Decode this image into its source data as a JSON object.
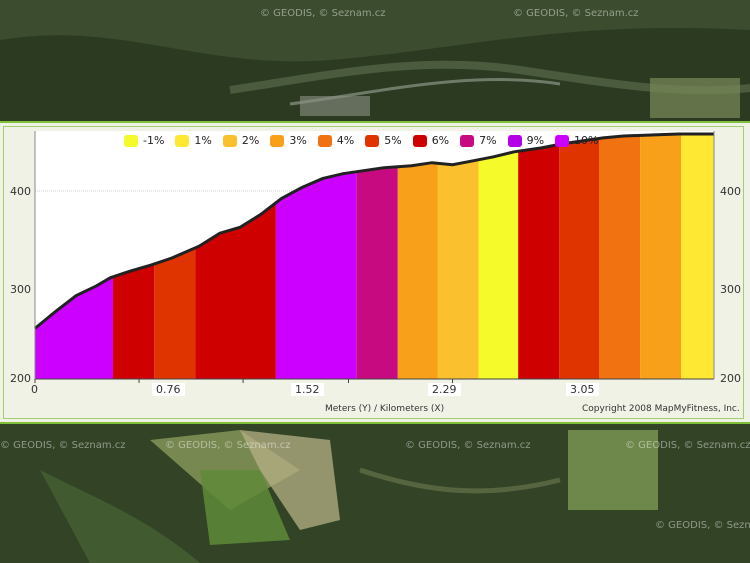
{
  "map": {
    "watermarks": [
      "© GEODIS, © Seznam.cz",
      "© GEODIS, © Seznam.cz",
      "© GEODIS, © Seznam.cz",
      "© GEODIS, © Seznam.cz",
      "© GEODIS, © Seznam.cz",
      "© GEODIS, © Seznam.cz",
      "© GEODIS, © Seznam.cz"
    ]
  },
  "chart_data": {
    "type": "area",
    "xlabel": "Meters (Y) / Kilometers (X)",
    "copyright": "Copyright 2008 MapMyFitness, Inc.",
    "xlim": [
      0,
      4.96
    ],
    "ylim": [
      200,
      450
    ],
    "x_ticks": [
      "0",
      "0.76",
      "1.52",
      "2.29",
      "3.05"
    ],
    "x_tick_values": [
      0,
      0.76,
      1.52,
      2.29,
      3.05
    ],
    "y_ticks": [
      200,
      300,
      400
    ],
    "legend": [
      {
        "label": "-1%",
        "color": "#f5fa2a"
      },
      {
        "label": "1%",
        "color": "#ffe833"
      },
      {
        "label": "2%",
        "color": "#fbc02d"
      },
      {
        "label": "3%",
        "color": "#f9a01b"
      },
      {
        "label": "4%",
        "color": "#f07210"
      },
      {
        "label": "5%",
        "color": "#df3300"
      },
      {
        "label": "6%",
        "color": "#cf0000"
      },
      {
        "label": "7%",
        "color": "#c80a80"
      },
      {
        "label": "9%",
        "color": "#b400e6"
      },
      {
        "label": "10%",
        "color": "#cc00ff"
      }
    ],
    "elevation_profile": {
      "x": [
        0,
        0.15,
        0.3,
        0.45,
        0.55,
        0.7,
        0.85,
        1.0,
        1.2,
        1.35,
        1.5,
        1.65,
        1.8,
        1.95,
        2.1,
        2.25,
        2.4,
        2.55,
        2.75,
        2.9,
        3.05,
        3.2,
        3.35,
        3.5,
        3.7,
        3.85,
        4.0,
        4.15,
        4.3,
        4.5,
        4.7,
        4.96
      ],
      "y": [
        251,
        268,
        284,
        294,
        302,
        309,
        315,
        322,
        334,
        347,
        353,
        366,
        382,
        393,
        402,
        407,
        410,
        413,
        415,
        418,
        416,
        420,
        424,
        429,
        433,
        437,
        440,
        443,
        445,
        446,
        447,
        447
      ]
    },
    "grade_segments": [
      {
        "from": 0,
        "to": 0.57,
        "grade": "10%"
      },
      {
        "from": 0.57,
        "to": 0.87,
        "grade": "6%"
      },
      {
        "from": 0.87,
        "to": 1.17,
        "grade": "5%"
      },
      {
        "from": 1.17,
        "to": 1.76,
        "grade": "6%"
      },
      {
        "from": 1.76,
        "to": 2.35,
        "grade": "10%"
      },
      {
        "from": 2.35,
        "to": 2.65,
        "grade": "7%"
      },
      {
        "from": 2.65,
        "to": 2.94,
        "grade": "3%"
      },
      {
        "from": 2.94,
        "to": 3.24,
        "grade": "2%"
      },
      {
        "from": 3.24,
        "to": 3.53,
        "grade": "-1%"
      },
      {
        "from": 3.53,
        "to": 3.83,
        "grade": "6%"
      },
      {
        "from": 3.83,
        "to": 4.12,
        "grade": "5%"
      },
      {
        "from": 4.12,
        "to": 4.42,
        "grade": "4%"
      },
      {
        "from": 4.42,
        "to": 4.72,
        "grade": "3%"
      },
      {
        "from": 4.72,
        "to": 4.96,
        "grade": "1%"
      }
    ]
  }
}
